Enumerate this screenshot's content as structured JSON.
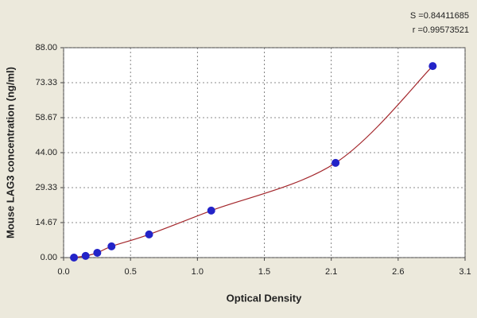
{
  "chart_data": {
    "type": "scatter",
    "xlabel": "Optical Density",
    "ylabel": "Mouse LAG3 concentration (ng/ml)",
    "annotations": [
      "S =0.84411685",
      "r =0.99573521"
    ],
    "x": [
      0.08,
      0.17,
      0.26,
      0.37,
      0.66,
      1.14,
      2.1,
      2.85
    ],
    "values": [
      0,
      0.7,
      2,
      4.7,
      9.7,
      19.7,
      39.7,
      80.3
    ],
    "color": "#2323c8",
    "curve_color": "#a3262b",
    "xlim": [
      0,
      3.1
    ],
    "ylim": [
      0,
      88
    ],
    "xticks": [
      {
        "value": 0,
        "label": "0.0"
      },
      {
        "value": 0.5167,
        "label": "0.5"
      },
      {
        "value": 1.0333,
        "label": "1.0"
      },
      {
        "value": 1.55,
        "label": "1.5"
      },
      {
        "value": 2.0667,
        "label": "2.1"
      },
      {
        "value": 2.5833,
        "label": "2.6"
      },
      3.1
    ],
    "yticks": [
      {
        "value": 0,
        "label": "0.00"
      },
      14.67,
      29.33,
      {
        "value": 44,
        "label": "44.00"
      },
      58.67,
      73.33,
      {
        "value": 88,
        "label": "88.00"
      }
    ],
    "grid": true
  }
}
